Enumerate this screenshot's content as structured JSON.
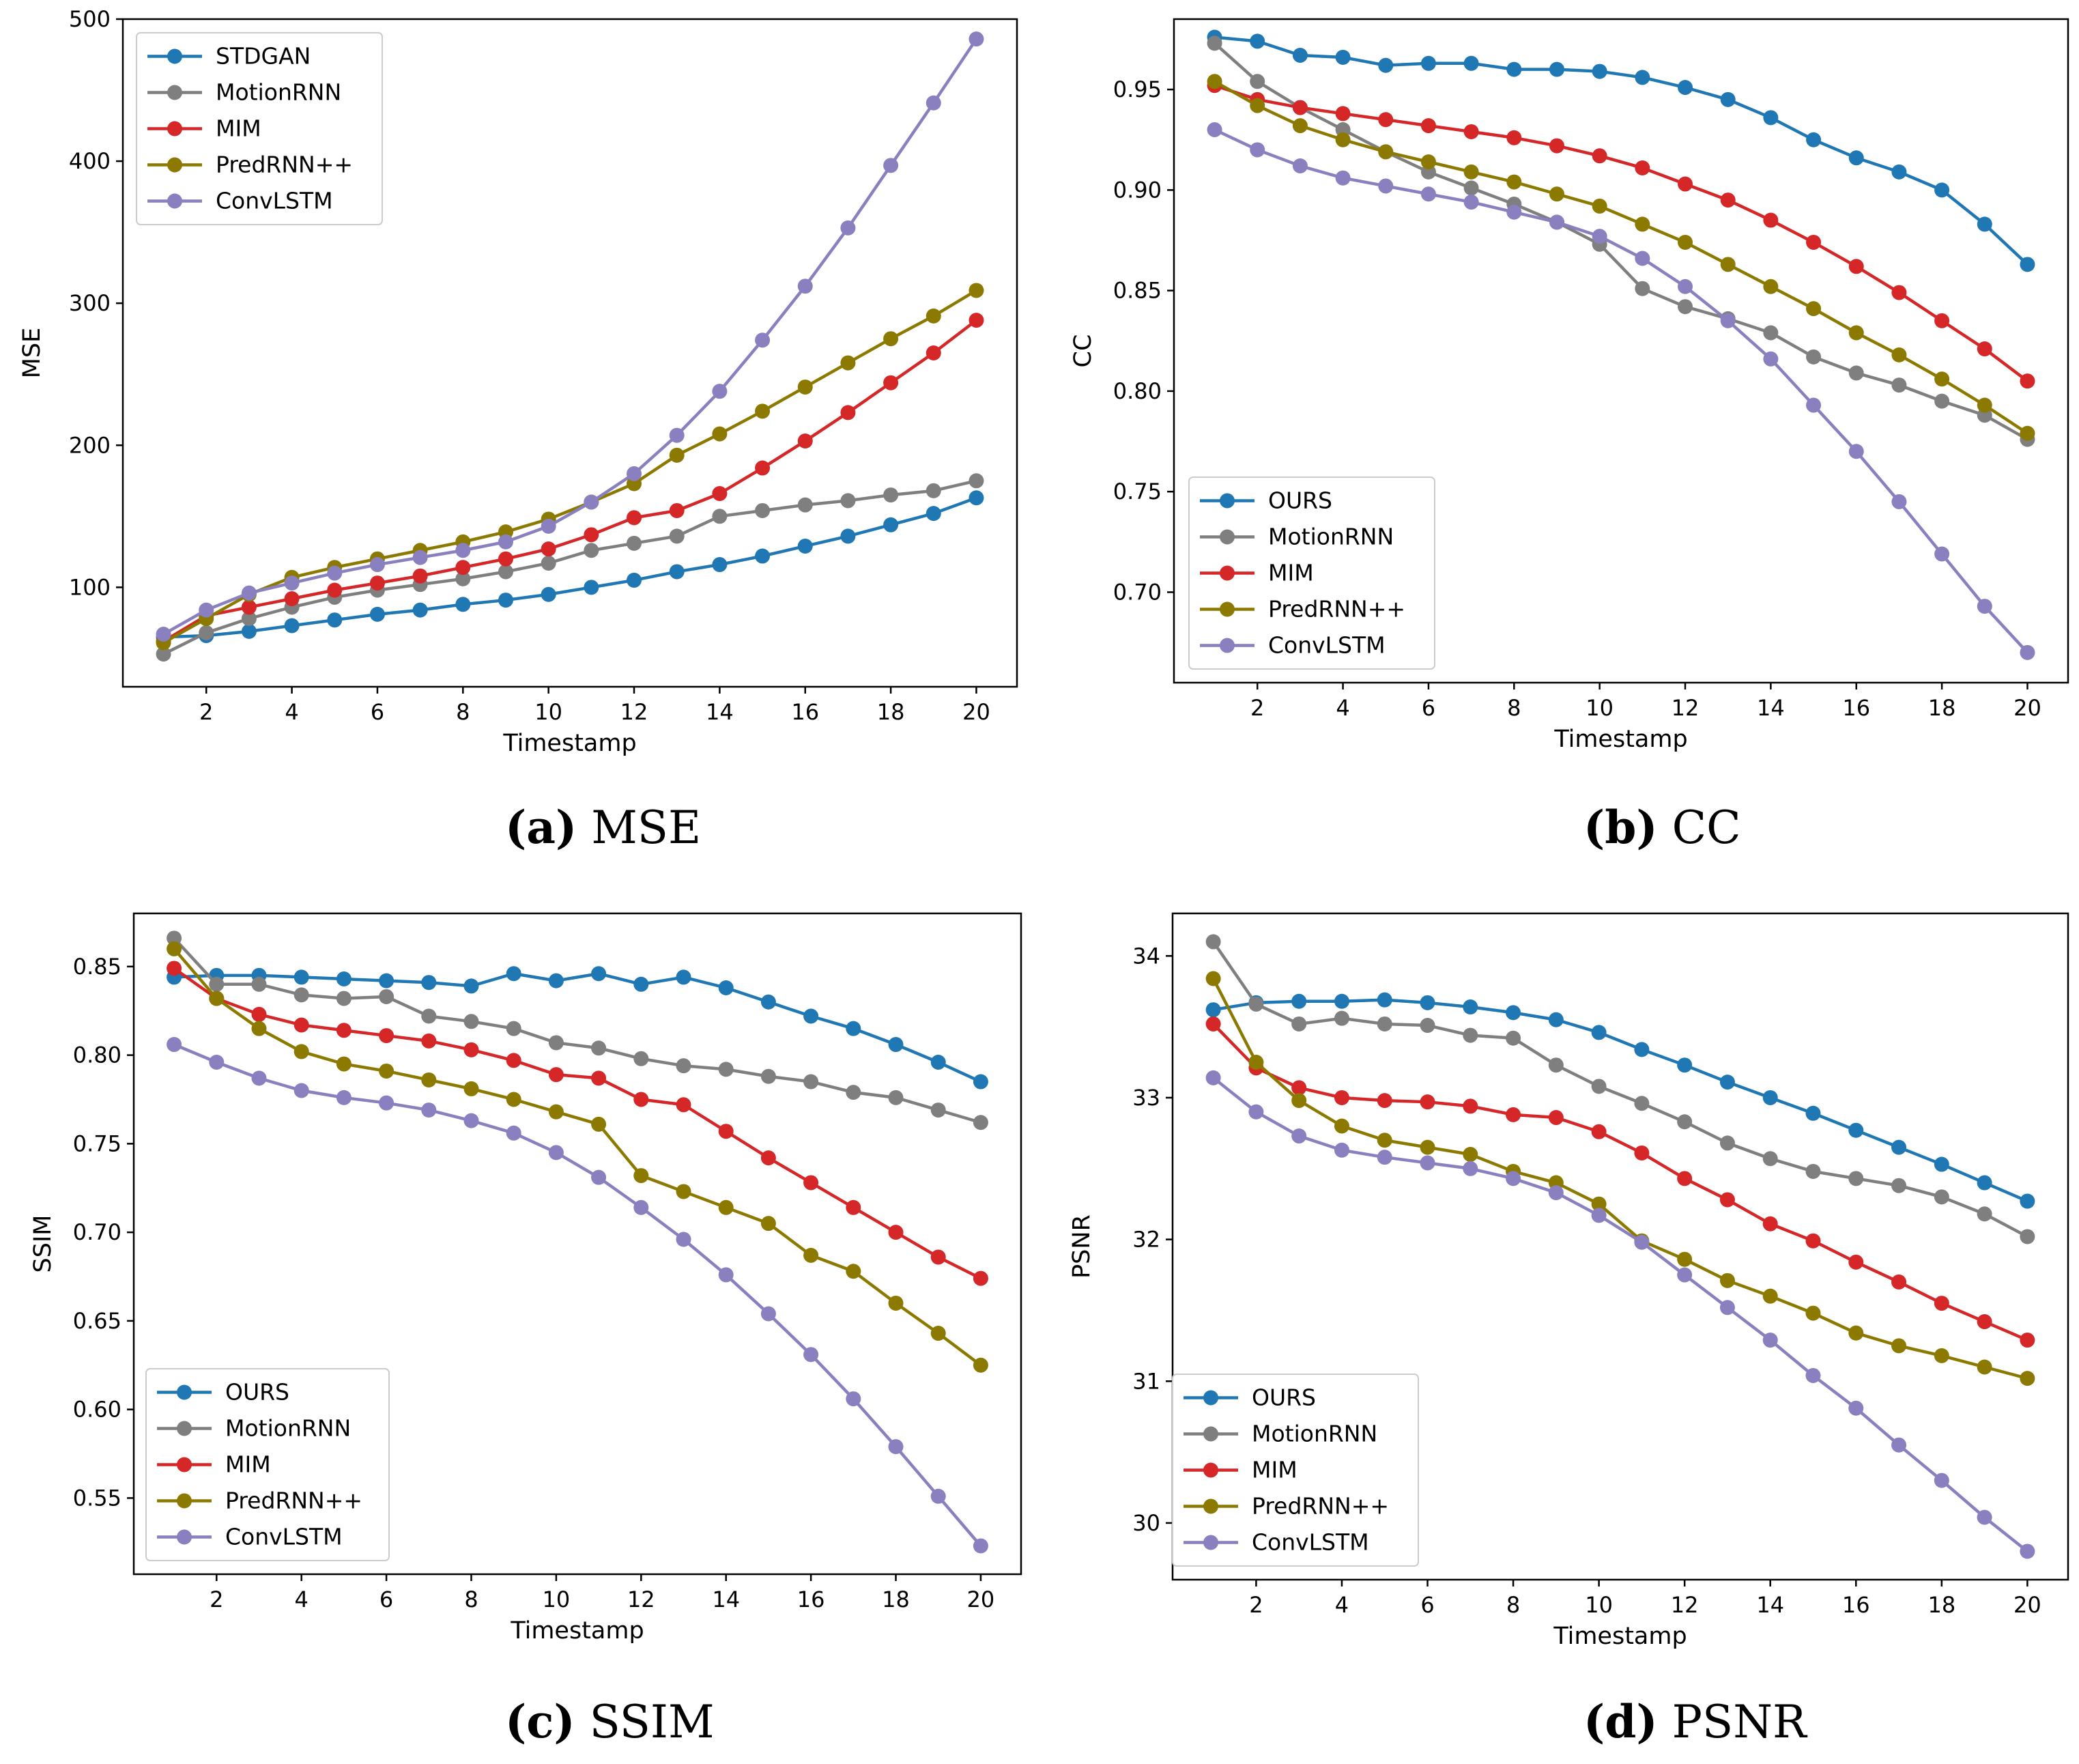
{
  "colors": {
    "blue": "#1f77b4",
    "gray": "#7f7f7f",
    "red": "#d62728",
    "olive": "#8c7a00",
    "purple": "#8a7fbf"
  },
  "chart_data": [
    {
      "id": "a",
      "type": "line",
      "caption_letter": "(a)",
      "caption_text": " MSE",
      "xlabel": "Timestamp",
      "ylabel": "MSE",
      "x": [
        1,
        2,
        3,
        4,
        5,
        6,
        7,
        8,
        9,
        10,
        11,
        12,
        13,
        14,
        15,
        16,
        17,
        18,
        19,
        20
      ],
      "xticks": [
        "2",
        "4",
        "6",
        "8",
        "10",
        "12",
        "14",
        "16",
        "18",
        "20"
      ],
      "xtick_values": [
        2,
        4,
        6,
        8,
        10,
        12,
        14,
        16,
        18,
        20
      ],
      "yticks": [
        "100",
        "200",
        "300",
        "400",
        "500"
      ],
      "ytick_values": [
        100,
        200,
        300,
        400,
        500
      ],
      "xlim": [
        0.05,
        20.95
      ],
      "ylim": [
        30,
        500
      ],
      "legend_position": "upper-left",
      "series": [
        {
          "name": "STDGAN",
          "color_key": "blue",
          "values": [
            65,
            66,
            69,
            73,
            77,
            81,
            84,
            88,
            91,
            95,
            100,
            105,
            111,
            116,
            122,
            129,
            136,
            144,
            152,
            163
          ]
        },
        {
          "name": "MotionRNN",
          "color_key": "gray",
          "values": [
            53,
            68,
            78,
            86,
            93,
            98,
            102,
            106,
            111,
            117,
            126,
            131,
            136,
            150,
            154,
            158,
            161,
            165,
            168,
            175
          ]
        },
        {
          "name": "MIM",
          "color_key": "red",
          "values": [
            62,
            80,
            86,
            92,
            98,
            103,
            108,
            114,
            120,
            127,
            137,
            149,
            154,
            166,
            184,
            203,
            223,
            244,
            265,
            288
          ]
        },
        {
          "name": "PredRNN++",
          "color_key": "olive",
          "values": [
            61,
            78,
            95,
            107,
            114,
            120,
            126,
            132,
            139,
            148,
            160,
            173,
            193,
            208,
            224,
            241,
            258,
            275,
            291,
            309
          ]
        },
        {
          "name": "ConvLSTM",
          "color_key": "purple",
          "values": [
            67,
            84,
            96,
            103,
            110,
            116,
            121,
            126,
            132,
            143,
            160,
            180,
            207,
            238,
            274,
            312,
            353,
            397,
            441,
            486
          ]
        }
      ]
    },
    {
      "id": "b",
      "type": "line",
      "caption_letter": "(b)",
      "caption_text": " CC",
      "xlabel": "Timestamp",
      "ylabel": "CC",
      "x": [
        1,
        2,
        3,
        4,
        5,
        6,
        7,
        8,
        9,
        10,
        11,
        12,
        13,
        14,
        15,
        16,
        17,
        18,
        19,
        20
      ],
      "xticks": [
        "2",
        "4",
        "6",
        "8",
        "10",
        "12",
        "14",
        "16",
        "18",
        "20"
      ],
      "xtick_values": [
        2,
        4,
        6,
        8,
        10,
        12,
        14,
        16,
        18,
        20
      ],
      "yticks": [
        "0.70",
        "0.75",
        "0.80",
        "0.85",
        "0.90",
        "0.95"
      ],
      "ytick_values": [
        0.7,
        0.75,
        0.8,
        0.85,
        0.9,
        0.95
      ],
      "xlim": [
        0.05,
        20.95
      ],
      "ylim": [
        0.655,
        0.985
      ],
      "legend_position": "lower-left",
      "series": [
        {
          "name": "OURS",
          "color_key": "blue",
          "values": [
            0.976,
            0.974,
            0.967,
            0.966,
            0.962,
            0.963,
            0.963,
            0.96,
            0.96,
            0.959,
            0.956,
            0.951,
            0.945,
            0.936,
            0.925,
            0.916,
            0.909,
            0.9,
            0.883,
            0.863
          ]
        },
        {
          "name": "MotionRNN",
          "color_key": "gray",
          "values": [
            0.973,
            0.954,
            0.941,
            0.93,
            0.919,
            0.909,
            0.901,
            0.893,
            0.884,
            0.873,
            0.851,
            0.842,
            0.836,
            0.829,
            0.817,
            0.809,
            0.803,
            0.795,
            0.788,
            0.776
          ]
        },
        {
          "name": "MIM",
          "color_key": "red",
          "values": [
            0.952,
            0.945,
            0.941,
            0.938,
            0.935,
            0.932,
            0.929,
            0.926,
            0.922,
            0.917,
            0.911,
            0.903,
            0.895,
            0.885,
            0.874,
            0.862,
            0.849,
            0.835,
            0.821,
            0.805
          ]
        },
        {
          "name": "PredRNN++",
          "color_key": "olive",
          "values": [
            0.954,
            0.942,
            0.932,
            0.925,
            0.919,
            0.914,
            0.909,
            0.904,
            0.898,
            0.892,
            0.883,
            0.874,
            0.863,
            0.852,
            0.841,
            0.829,
            0.818,
            0.806,
            0.793,
            0.779
          ]
        },
        {
          "name": "ConvLSTM",
          "color_key": "purple",
          "values": [
            0.93,
            0.92,
            0.912,
            0.906,
            0.902,
            0.898,
            0.894,
            0.889,
            0.884,
            0.877,
            0.866,
            0.852,
            0.835,
            0.816,
            0.793,
            0.77,
            0.745,
            0.719,
            0.693,
            0.67
          ]
        }
      ]
    },
    {
      "id": "c",
      "type": "line",
      "caption_letter": "(c)",
      "caption_text": " SSIM",
      "xlabel": "Timestamp",
      "ylabel": "SSIM",
      "x": [
        1,
        2,
        3,
        4,
        5,
        6,
        7,
        8,
        9,
        10,
        11,
        12,
        13,
        14,
        15,
        16,
        17,
        18,
        19,
        20
      ],
      "xticks": [
        "2",
        "4",
        "6",
        "8",
        "10",
        "12",
        "14",
        "16",
        "18",
        "20"
      ],
      "xtick_values": [
        2,
        4,
        6,
        8,
        10,
        12,
        14,
        16,
        18,
        20
      ],
      "yticks": [
        "0.55",
        "0.60",
        "0.65",
        "0.70",
        "0.75",
        "0.80",
        "0.85"
      ],
      "ytick_values": [
        0.55,
        0.6,
        0.65,
        0.7,
        0.75,
        0.8,
        0.85
      ],
      "xlim": [
        0.05,
        20.95
      ],
      "ylim": [
        0.507,
        0.88
      ],
      "legend_position": "lower-left",
      "series": [
        {
          "name": "OURS",
          "color_key": "blue",
          "values": [
            0.844,
            0.845,
            0.845,
            0.844,
            0.843,
            0.842,
            0.841,
            0.839,
            0.846,
            0.842,
            0.846,
            0.84,
            0.844,
            0.838,
            0.83,
            0.822,
            0.815,
            0.806,
            0.796,
            0.785
          ]
        },
        {
          "name": "MotionRNN",
          "color_key": "gray",
          "values": [
            0.866,
            0.84,
            0.84,
            0.834,
            0.832,
            0.833,
            0.822,
            0.819,
            0.815,
            0.807,
            0.804,
            0.798,
            0.794,
            0.792,
            0.788,
            0.785,
            0.779,
            0.776,
            0.769,
            0.762
          ]
        },
        {
          "name": "MIM",
          "color_key": "red",
          "values": [
            0.849,
            0.832,
            0.823,
            0.817,
            0.814,
            0.811,
            0.808,
            0.803,
            0.797,
            0.789,
            0.787,
            0.775,
            0.772,
            0.757,
            0.742,
            0.728,
            0.714,
            0.7,
            0.686,
            0.674
          ]
        },
        {
          "name": "PredRNN++",
          "color_key": "olive",
          "values": [
            0.86,
            0.832,
            0.815,
            0.802,
            0.795,
            0.791,
            0.786,
            0.781,
            0.775,
            0.768,
            0.761,
            0.732,
            0.723,
            0.714,
            0.705,
            0.687,
            0.678,
            0.66,
            0.643,
            0.625
          ]
        },
        {
          "name": "ConvLSTM",
          "color_key": "purple",
          "values": [
            0.806,
            0.796,
            0.787,
            0.78,
            0.776,
            0.773,
            0.769,
            0.763,
            0.756,
            0.745,
            0.731,
            0.714,
            0.696,
            0.676,
            0.654,
            0.631,
            0.606,
            0.579,
            0.551,
            0.523
          ]
        }
      ]
    },
    {
      "id": "d",
      "type": "line",
      "caption_letter": "(d)",
      "caption_text": " PSNR",
      "xlabel": "Timestamp",
      "ylabel": "PSNR",
      "x": [
        1,
        2,
        3,
        4,
        5,
        6,
        7,
        8,
        9,
        10,
        11,
        12,
        13,
        14,
        15,
        16,
        17,
        18,
        19,
        20
      ],
      "xticks": [
        "2",
        "4",
        "6",
        "8",
        "10",
        "12",
        "14",
        "16",
        "18",
        "20"
      ],
      "xtick_values": [
        2,
        4,
        6,
        8,
        10,
        12,
        14,
        16,
        18,
        20
      ],
      "yticks": [
        "30",
        "31",
        "32",
        "33",
        "34"
      ],
      "ytick_values": [
        30,
        31,
        32,
        33,
        34
      ],
      "xlim": [
        0.05,
        20.95
      ],
      "ylim": [
        29.6,
        34.3
      ],
      "legend_position": "lower-left",
      "series": [
        {
          "name": "OURS",
          "color_key": "blue",
          "values": [
            33.62,
            33.67,
            33.68,
            33.68,
            33.69,
            33.67,
            33.64,
            33.6,
            33.55,
            33.46,
            33.34,
            33.23,
            33.11,
            33.0,
            32.89,
            32.77,
            32.65,
            32.53,
            32.4,
            32.27
          ]
        },
        {
          "name": "MotionRNN",
          "color_key": "gray",
          "values": [
            34.1,
            33.66,
            33.52,
            33.56,
            33.52,
            33.51,
            33.44,
            33.42,
            33.23,
            33.08,
            32.96,
            32.83,
            32.68,
            32.57,
            32.48,
            32.43,
            32.38,
            32.3,
            32.18,
            32.02
          ]
        },
        {
          "name": "MIM",
          "color_key": "red",
          "values": [
            33.52,
            33.21,
            33.07,
            33.0,
            32.98,
            32.97,
            32.94,
            32.88,
            32.86,
            32.76,
            32.61,
            32.43,
            32.28,
            32.11,
            31.99,
            31.84,
            31.7,
            31.55,
            31.42,
            31.29
          ]
        },
        {
          "name": "PredRNN++",
          "color_key": "olive",
          "values": [
            33.84,
            33.25,
            32.98,
            32.8,
            32.7,
            32.65,
            32.6,
            32.48,
            32.4,
            32.25,
            31.99,
            31.86,
            31.71,
            31.6,
            31.48,
            31.34,
            31.25,
            31.18,
            31.1,
            31.02
          ]
        },
        {
          "name": "ConvLSTM",
          "color_key": "purple",
          "values": [
            33.14,
            32.9,
            32.73,
            32.63,
            32.58,
            32.54,
            32.5,
            32.43,
            32.33,
            32.17,
            31.98,
            31.75,
            31.52,
            31.29,
            31.04,
            30.81,
            30.55,
            30.3,
            30.04,
            29.8
          ]
        }
      ]
    }
  ]
}
